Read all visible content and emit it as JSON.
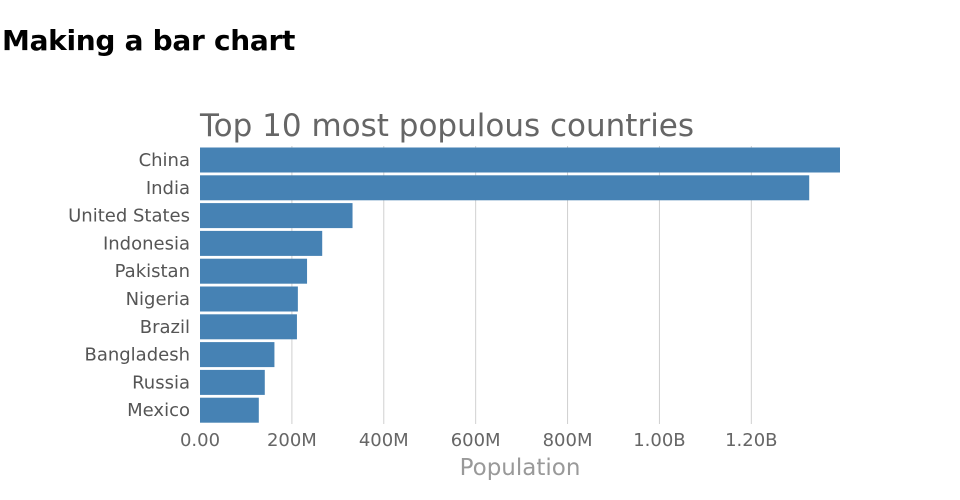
{
  "page": {
    "heading": "Making a bar chart"
  },
  "chart_data": {
    "type": "bar",
    "orientation": "horizontal",
    "title": "Top 10 most populous countries",
    "xlabel": "Population",
    "ylabel": "",
    "categories": [
      "China",
      "India",
      "United States",
      "Indonesia",
      "Pakistan",
      "Nigeria",
      "Brazil",
      "Bangladesh",
      "Russia",
      "Mexico"
    ],
    "values": [
      1393000000,
      1326000000,
      332000000,
      266000000,
      233000000,
      213000000,
      211000000,
      162000000,
      141000000,
      128000000
    ],
    "xlim": [
      0,
      1393000000
    ],
    "ticks": [
      {
        "value": 0,
        "label": "0.00"
      },
      {
        "value": 200000000,
        "label": "200M"
      },
      {
        "value": 400000000,
        "label": "400M"
      },
      {
        "value": 600000000,
        "label": "600M"
      },
      {
        "value": 800000000,
        "label": "800M"
      },
      {
        "value": 1000000000,
        "label": "1.00B"
      },
      {
        "value": 1200000000,
        "label": "1.20B"
      }
    ],
    "grid": true,
    "legend": "none",
    "colors": {
      "bar": "#4682b4",
      "title": "#666666",
      "axis_title": "#999999",
      "grid": "#d0d0d0"
    }
  }
}
